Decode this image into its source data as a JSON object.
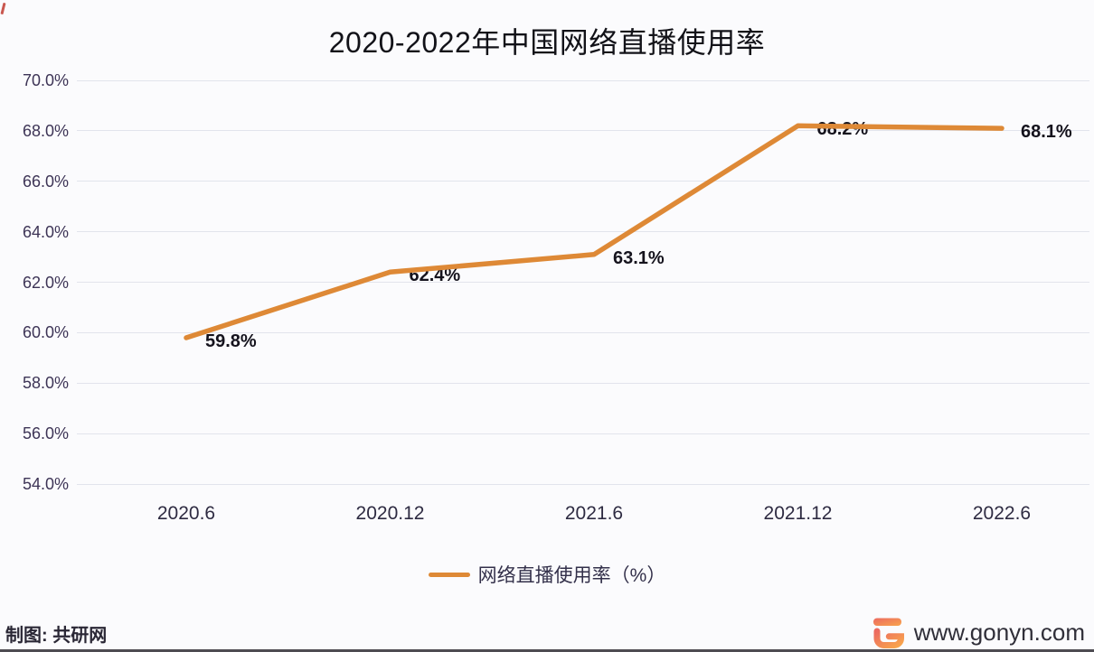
{
  "page": {
    "footer_left": "制图: 共研网",
    "footer_right_url": "www.gonyn.com",
    "logo_name": "gonyn-g-logo",
    "accent_color": "#de8936",
    "logo_gradient": [
      "#ec6a60",
      "#f8a54d"
    ]
  },
  "chart_data": {
    "type": "line",
    "title": "2020-2022年中国网络直播使用率",
    "categories": [
      "2020.6",
      "2020.12",
      "2021.6",
      "2021.12",
      "2022.6"
    ],
    "series": [
      {
        "name": "网络直播使用率（%）",
        "values": [
          59.8,
          62.4,
          63.1,
          68.2,
          68.1
        ]
      }
    ],
    "data_labels": [
      "59.8%",
      "62.4%",
      "63.1%",
      "68.2%",
      "68.1%"
    ],
    "xlabel": "",
    "ylabel": "",
    "ylim": [
      54,
      70
    ],
    "ytick_step": 2,
    "ytick_labels": [
      "54.0%",
      "56.0%",
      "58.0%",
      "60.0%",
      "62.0%",
      "64.0%",
      "66.0%",
      "68.0%",
      "70.0%"
    ],
    "grid": true,
    "legend_position": "bottom",
    "colors": {
      "line": "#de8936",
      "grid": "#e2e4ec",
      "ytick": "#3d3456",
      "xtick": "#2e2b42",
      "data_label": "#15131d",
      "title": "#121218"
    }
  }
}
